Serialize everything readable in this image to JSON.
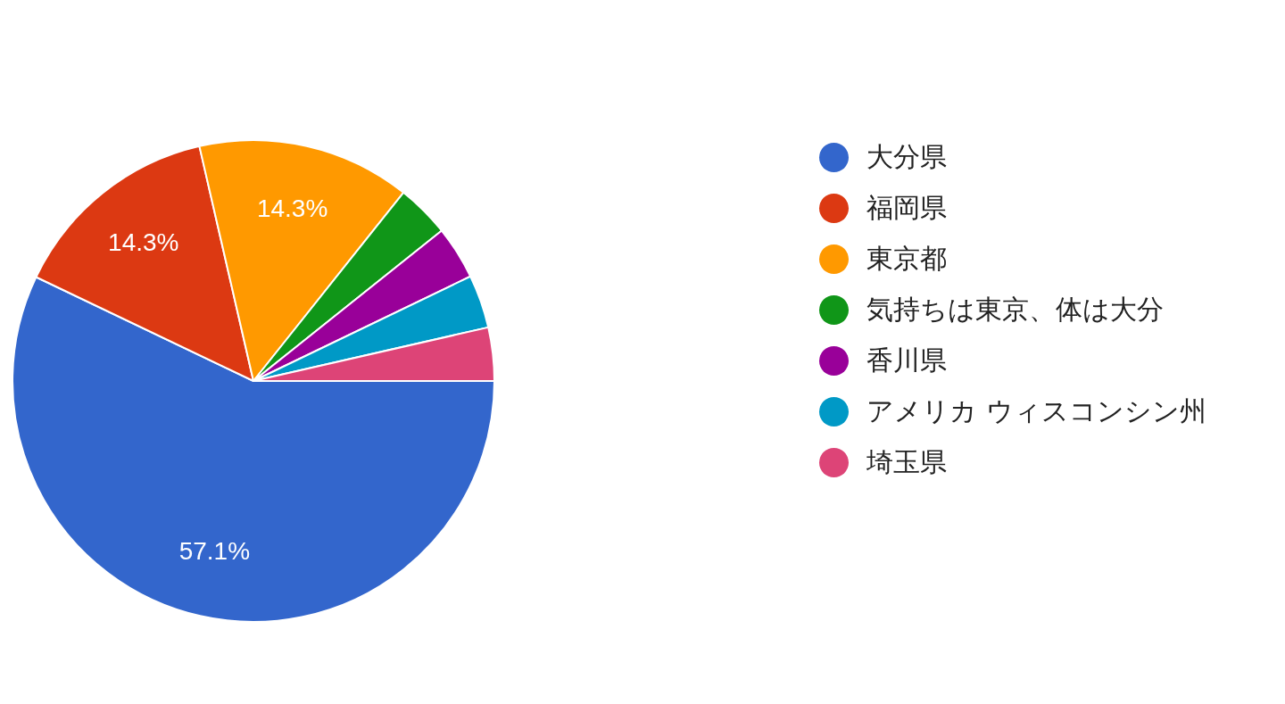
{
  "chart_data": {
    "type": "pie",
    "categories": [
      "大分県",
      "福岡県",
      "東京都",
      "気持ちは東京、体は大分",
      "香川県",
      "アメリカ ウィスコンシン州",
      "埼玉県"
    ],
    "values": [
      57.1,
      14.3,
      14.3,
      3.575,
      3.575,
      3.575,
      3.575
    ],
    "colors": [
      "#3366cc",
      "#dc3912",
      "#ff9900",
      "#109618",
      "#990099",
      "#0099c6",
      "#dd4477"
    ],
    "value_labels": [
      "57.1%",
      "14.3%",
      "14.3%",
      null,
      null,
      null,
      null
    ],
    "legend": "right"
  }
}
